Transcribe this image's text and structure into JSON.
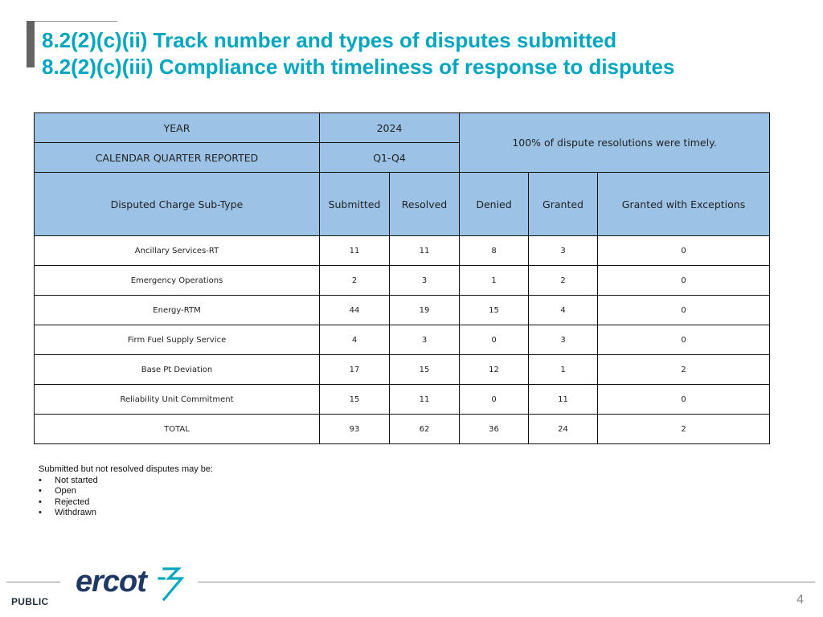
{
  "title": {
    "line1": "8.2(2)(c)(ii) Track number and types of disputes submitted",
    "line2": "8.2(2)(c)(iii) Compliance with timeliness of response to disputes"
  },
  "table": {
    "year_label": "YEAR",
    "year_value": "2024",
    "quarter_label": "CALENDAR QUARTER REPORTED",
    "quarter_value": "Q1-Q4",
    "timely_note": "100% of dispute resolutions were timely.",
    "columns": [
      "Disputed Charge Sub-Type",
      "Submitted",
      "Resolved",
      "Denied",
      "Granted",
      "Granted with Exceptions"
    ],
    "rows": [
      [
        "Ancillary Services-RT",
        "11",
        "11",
        "8",
        "3",
        "0"
      ],
      [
        "Emergency Operations",
        "2",
        "3",
        "1",
        "2",
        "0"
      ],
      [
        "Energy-RTM",
        "44",
        "19",
        "15",
        "4",
        "0"
      ],
      [
        "Firm Fuel Supply Service",
        "4",
        "3",
        "0",
        "3",
        "0"
      ],
      [
        "Base Pt Deviation",
        "17",
        "15",
        "12",
        "1",
        "2"
      ],
      [
        "Reliability Unit Commitment",
        "15",
        "11",
        "0",
        "11",
        "0"
      ],
      [
        "TOTAL",
        "93",
        "62",
        "36",
        "24",
        "2"
      ]
    ]
  },
  "note": {
    "heading": "Submitted but not resolved disputes may be:",
    "items": [
      "Not started",
      "Open",
      "Rejected",
      "Withdrawn"
    ]
  },
  "footer": {
    "logo_text": "ercot",
    "classification": "PUBLIC",
    "page_number": "4"
  },
  "colors": {
    "title": "#00a6c0",
    "header_fill": "#9cc3e6",
    "logo": "#1f3864",
    "logo_mark": "#00a6c0"
  }
}
